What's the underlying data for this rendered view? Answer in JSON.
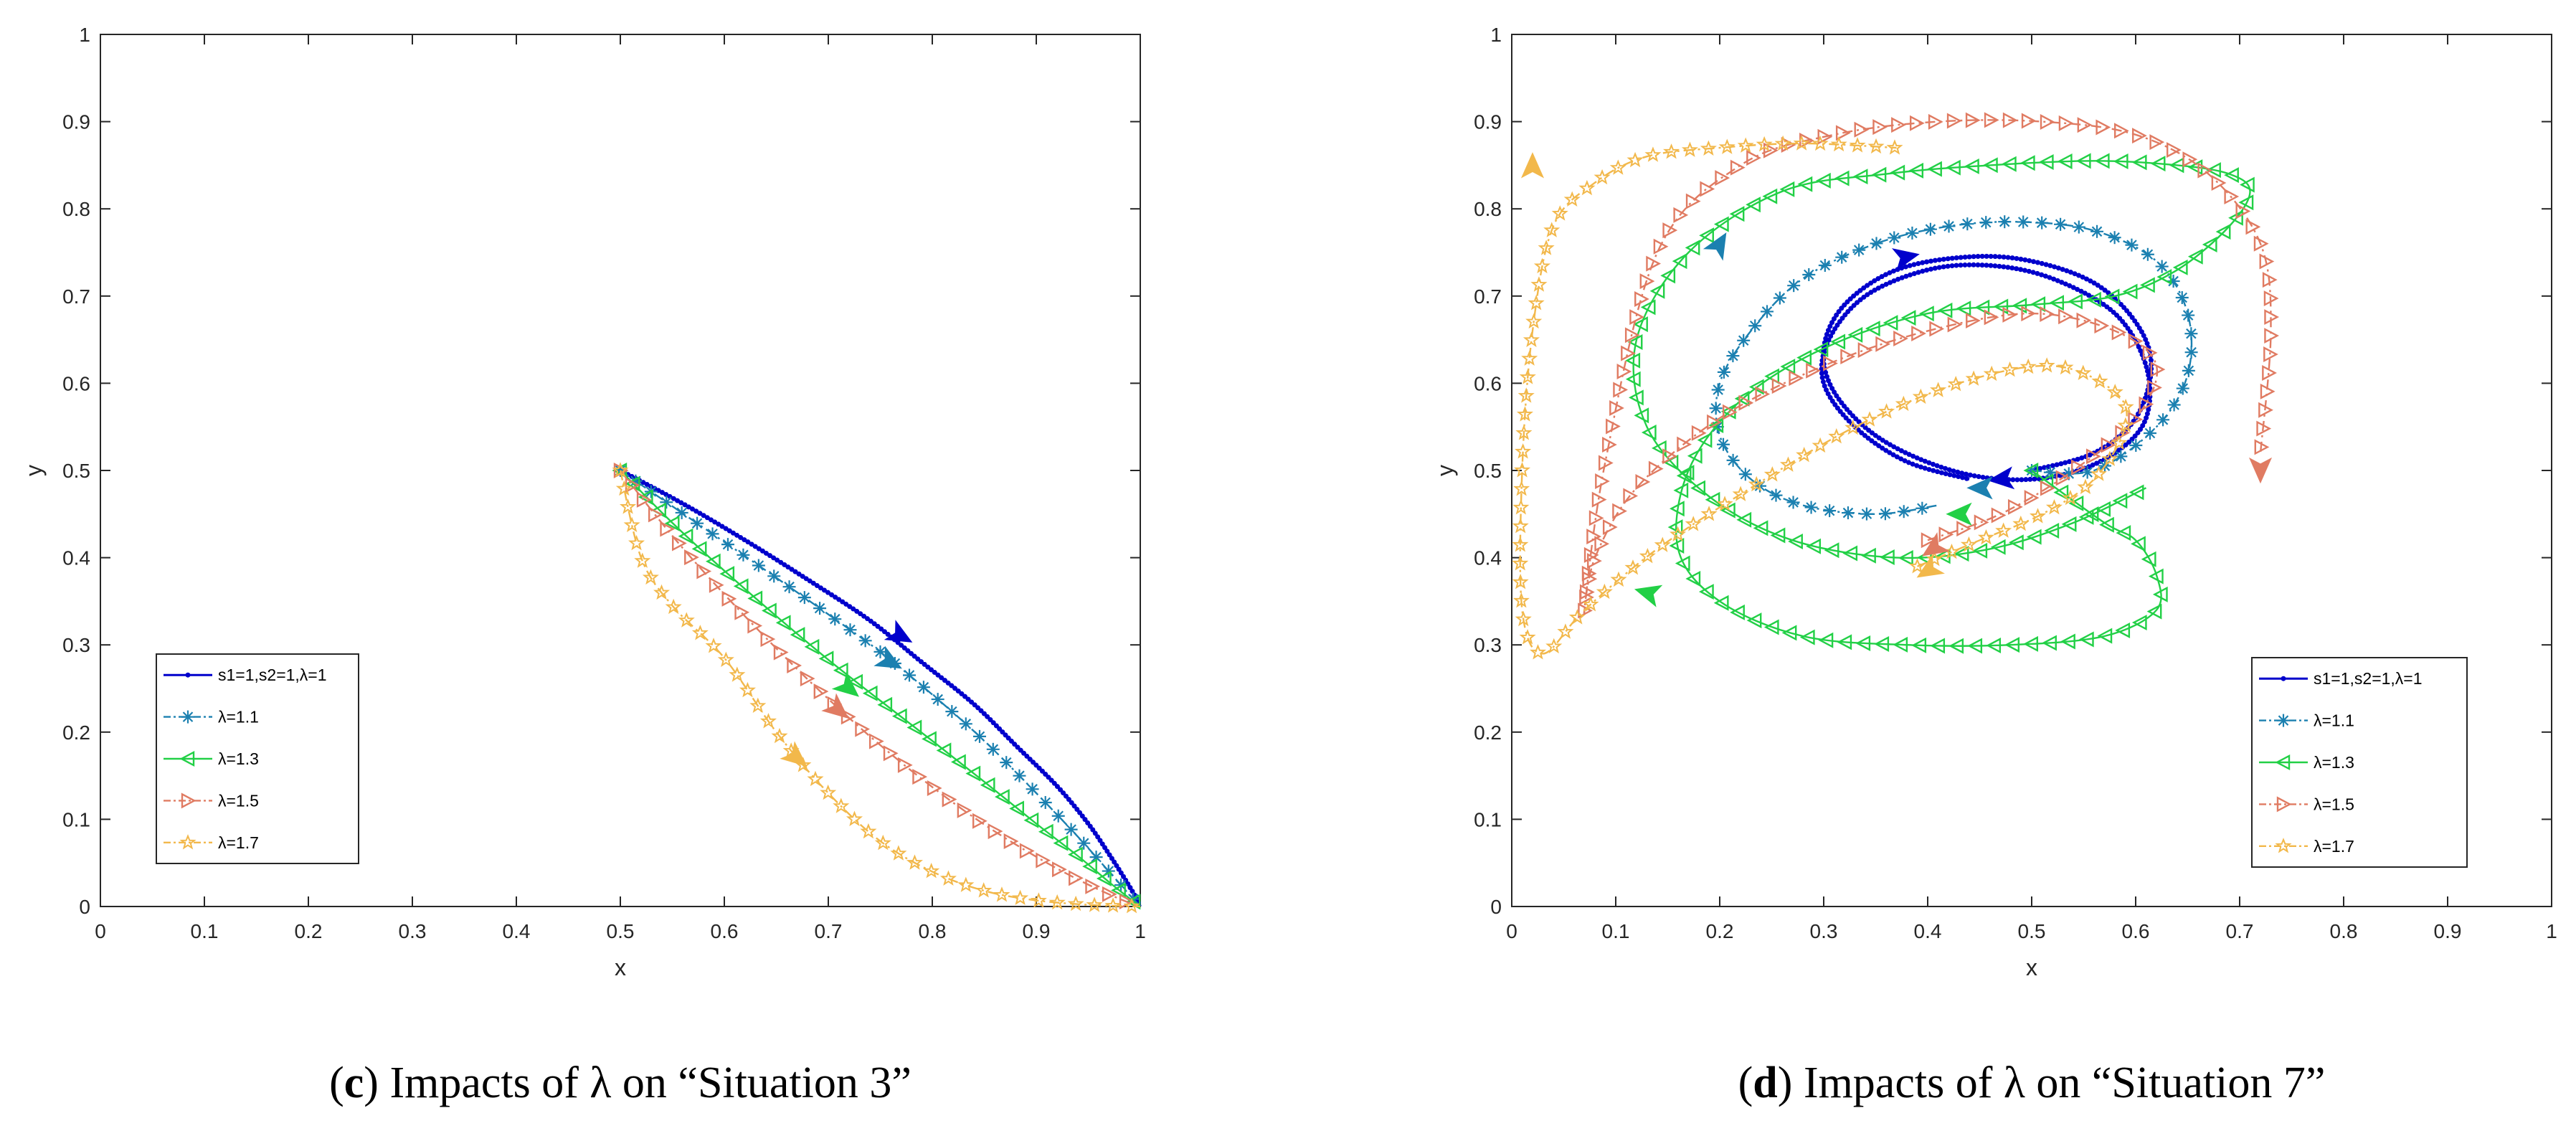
{
  "chart_data": [
    {
      "type": "line",
      "caption": {
        "letter": "c",
        "text": " Impacts of λ on “Situation 3”"
      },
      "xlabel": "x",
      "ylabel": "y",
      "xlim": [
        0,
        1
      ],
      "ylim": [
        0,
        1
      ],
      "xticks": [
        0,
        0.1,
        0.2,
        0.3,
        0.4,
        0.5,
        0.6,
        0.7,
        0.8,
        0.9,
        1
      ],
      "yticks": [
        0,
        0.1,
        0.2,
        0.3,
        0.4,
        0.5,
        0.6,
        0.7,
        0.8,
        0.9,
        1
      ],
      "grid": false,
      "legend": "bottom-left",
      "series": [
        {
          "name": "s1=1,s2=1,λ=1",
          "color": "#0000cc",
          "marker": "dot",
          "style": "solid",
          "x": [
            0.5,
            0.56,
            0.62,
            0.68,
            0.74,
            0.79,
            0.84,
            0.88,
            0.92,
            0.95,
            0.97,
            0.985,
            0.995,
            1.0
          ],
          "y": [
            0.5,
            0.462,
            0.42,
            0.375,
            0.328,
            0.28,
            0.232,
            0.185,
            0.138,
            0.095,
            0.06,
            0.032,
            0.012,
            0.0
          ]
        },
        {
          "name": "λ=1.1",
          "color": "#1b80b0",
          "marker": "asterisk",
          "style": "dashdot",
          "x": [
            0.5,
            0.55,
            0.6,
            0.65,
            0.7,
            0.75,
            0.8,
            0.85,
            0.9,
            0.94,
            0.97,
            0.99,
            1.0
          ],
          "y": [
            0.5,
            0.459,
            0.418,
            0.377,
            0.335,
            0.292,
            0.243,
            0.19,
            0.13,
            0.08,
            0.04,
            0.013,
            0.0
          ]
        },
        {
          "name": "λ=1.3",
          "color": "#22d046",
          "marker": "triangle-left",
          "style": "solid",
          "x": [
            0.5,
            0.55,
            0.6,
            0.65,
            0.7,
            0.75,
            0.8,
            0.85,
            0.9,
            0.94,
            0.97,
            0.99,
            1.0
          ],
          "y": [
            0.5,
            0.44,
            0.385,
            0.333,
            0.283,
            0.236,
            0.19,
            0.143,
            0.095,
            0.058,
            0.028,
            0.009,
            0.0
          ]
        },
        {
          "name": "λ=1.5",
          "color": "#e07b62",
          "marker": "triangle-right",
          "style": "dashdot",
          "x": [
            0.5,
            0.55,
            0.6,
            0.65,
            0.7,
            0.75,
            0.8,
            0.85,
            0.9,
            0.94,
            0.97,
            0.99,
            1.0
          ],
          "y": [
            0.5,
            0.425,
            0.358,
            0.296,
            0.238,
            0.185,
            0.137,
            0.094,
            0.057,
            0.031,
            0.014,
            0.004,
            0.0
          ]
        },
        {
          "name": "λ=1.7",
          "color": "#f2b84b",
          "marker": "star",
          "style": "dashdot",
          "x": [
            0.5,
            0.52,
            0.55,
            0.6,
            0.65,
            0.7,
            0.75,
            0.8,
            0.85,
            0.9,
            0.95,
            1.0
          ],
          "y": [
            0.5,
            0.4,
            0.345,
            0.285,
            0.2,
            0.13,
            0.075,
            0.04,
            0.018,
            0.007,
            0.002,
            0.0
          ]
        }
      ],
      "arrows": [
        {
          "series": 0,
          "x": 0.77,
          "y": 0.31,
          "dx": 0.03,
          "dy": -0.02
        },
        {
          "series": 1,
          "x": 0.76,
          "y": 0.28,
          "dx": 0.03,
          "dy": -0.02
        },
        {
          "series": 2,
          "x": 0.72,
          "y": 0.25,
          "dx": 0.02,
          "dy": -0.02
        },
        {
          "series": 3,
          "x": 0.71,
          "y": 0.225,
          "dx": 0.02,
          "dy": -0.02
        },
        {
          "series": 4,
          "x": 0.67,
          "y": 0.17,
          "dx": 0.02,
          "dy": -0.02
        }
      ]
    },
    {
      "type": "line",
      "caption": {
        "letter": "d",
        "text": " Impacts of λ on “Situation 7”"
      },
      "xlabel": "x",
      "ylabel": "y",
      "xlim": [
        0,
        1
      ],
      "ylim": [
        0,
        1
      ],
      "xticks": [
        0,
        0.1,
        0.2,
        0.3,
        0.4,
        0.5,
        0.6,
        0.7,
        0.8,
        0.9,
        1
      ],
      "yticks": [
        0,
        0.1,
        0.2,
        0.3,
        0.4,
        0.5,
        0.6,
        0.7,
        0.8,
        0.9,
        1
      ],
      "grid": false,
      "legend": "bottom-right",
      "series": [
        {
          "name": "s1=1,s2=1,λ=1",
          "color": "#0000cc",
          "marker": "dot",
          "style": "solid",
          "x": [
            0.5,
            0.56,
            0.6,
            0.615,
            0.6,
            0.56,
            0.5,
            0.44,
            0.37,
            0.32,
            0.3,
            0.31,
            0.35,
            0.41,
            0.47,
            0.53,
            0.58,
            0.61,
            0.61,
            0.58,
            0.52,
            0.46,
            0.4,
            0.34,
            0.305,
            0.3,
            0.33,
            0.38,
            0.44
          ],
          "y": [
            0.5,
            0.52,
            0.56,
            0.62,
            0.67,
            0.715,
            0.74,
            0.745,
            0.73,
            0.69,
            0.64,
            0.59,
            0.54,
            0.505,
            0.49,
            0.495,
            0.52,
            0.56,
            0.62,
            0.68,
            0.72,
            0.735,
            0.73,
            0.7,
            0.65,
            0.6,
            0.55,
            0.51,
            0.49
          ]
        },
        {
          "name": "λ=1.1",
          "color": "#1b80b0",
          "marker": "asterisk",
          "style": "dashdot",
          "x": [
            0.5,
            0.56,
            0.62,
            0.65,
            0.65,
            0.62,
            0.56,
            0.49,
            0.42,
            0.35,
            0.28,
            0.23,
            0.2,
            0.2,
            0.23,
            0.28,
            0.35,
            0.41
          ],
          "y": [
            0.5,
            0.5,
            0.55,
            0.61,
            0.68,
            0.74,
            0.775,
            0.785,
            0.78,
            0.76,
            0.72,
            0.66,
            0.6,
            0.54,
            0.49,
            0.46,
            0.45,
            0.46
          ]
        },
        {
          "name": "λ=1.3",
          "color": "#22d046",
          "marker": "triangle-left",
          "style": "solid",
          "x": [
            0.5,
            0.57,
            0.6,
            0.62,
            0.62,
            0.57,
            0.48,
            0.38,
            0.28,
            0.2,
            0.16,
            0.17,
            0.22,
            0.3,
            0.4,
            0.5,
            0.58,
            0.64,
            0.69,
            0.71,
            0.69,
            0.64,
            0.56,
            0.46,
            0.36,
            0.26,
            0.17,
            0.12,
            0.13,
            0.19,
            0.27,
            0.37,
            0.46,
            0.54,
            0.61
          ],
          "y": [
            0.5,
            0.44,
            0.42,
            0.38,
            0.34,
            0.31,
            0.3,
            0.3,
            0.31,
            0.35,
            0.41,
            0.5,
            0.58,
            0.64,
            0.68,
            0.69,
            0.7,
            0.73,
            0.78,
            0.82,
            0.84,
            0.85,
            0.855,
            0.85,
            0.84,
            0.82,
            0.75,
            0.65,
            0.55,
            0.47,
            0.42,
            0.4,
            0.41,
            0.44,
            0.48
          ]
        },
        {
          "name": "λ=1.5",
          "color": "#e07b62",
          "marker": "triangle-right",
          "style": "dashdot",
          "x": [
            0.4,
            0.47,
            0.54,
            0.6,
            0.62,
            0.58,
            0.5,
            0.4,
            0.3,
            0.2,
            0.12,
            0.08,
            0.07,
            0.09,
            0.14,
            0.22,
            0.31,
            0.41,
            0.51,
            0.6,
            0.67,
            0.72,
            0.73,
            0.72
          ],
          "y": [
            0.42,
            0.45,
            0.5,
            0.56,
            0.62,
            0.66,
            0.68,
            0.66,
            0.62,
            0.56,
            0.48,
            0.4,
            0.34,
            0.51,
            0.75,
            0.85,
            0.885,
            0.9,
            0.9,
            0.885,
            0.84,
            0.76,
            0.66,
            0.52
          ]
        },
        {
          "name": "λ=1.7",
          "color": "#f2b84b",
          "marker": "star",
          "style": "dashdot",
          "x": [
            0.39,
            0.45,
            0.51,
            0.56,
            0.59,
            0.58,
            0.52,
            0.43,
            0.33,
            0.23,
            0.14,
            0.07,
            0.03,
            0.01,
            0.01,
            0.02,
            0.04,
            0.08,
            0.13,
            0.2,
            0.28,
            0.37
          ],
          "y": [
            0.39,
            0.42,
            0.45,
            0.49,
            0.55,
            0.59,
            0.62,
            0.6,
            0.55,
            0.48,
            0.41,
            0.34,
            0.29,
            0.34,
            0.5,
            0.66,
            0.78,
            0.83,
            0.86,
            0.87,
            0.875,
            0.87
          ]
        }
      ],
      "arrows": [
        {
          "series": 0,
          "x": 0.38,
          "y": 0.745,
          "dx": 0.04,
          "dy": 0.01
        },
        {
          "series": 0,
          "x": 0.47,
          "y": 0.49,
          "dx": -0.04,
          "dy": -0.005
        },
        {
          "series": 1,
          "x": 0.2,
          "y": 0.76,
          "dx": 0.015,
          "dy": 0.03
        },
        {
          "series": 1,
          "x": 0.45,
          "y": 0.48,
          "dx": -0.04,
          "dy": 0.0
        },
        {
          "series": 2,
          "x": 0.43,
          "y": 0.45,
          "dx": -0.04,
          "dy": 0.0
        },
        {
          "series": 2,
          "x": 0.13,
          "y": 0.36,
          "dx": -0.03,
          "dy": 0.01
        },
        {
          "series": 3,
          "x": 0.72,
          "y": 0.5,
          "dx": 0.0,
          "dy": -0.04
        },
        {
          "series": 3,
          "x": 0.405,
          "y": 0.41,
          "dx": -0.025,
          "dy": -0.02
        },
        {
          "series": 4,
          "x": 0.02,
          "y": 0.85,
          "dx": 0.0,
          "dy": 0.04
        },
        {
          "series": 4,
          "x": 0.4,
          "y": 0.385,
          "dx": -0.02,
          "dy": -0.015
        }
      ]
    }
  ]
}
